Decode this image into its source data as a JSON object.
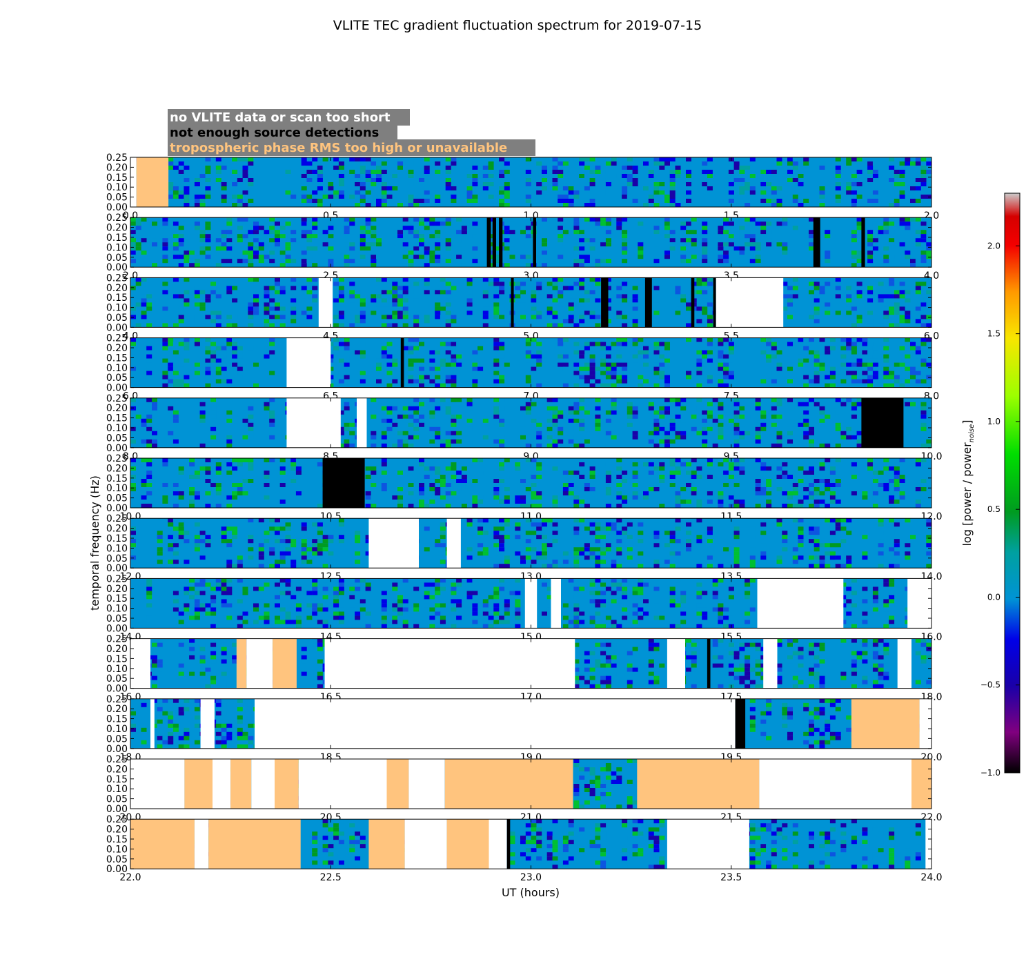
{
  "chart_data": {
    "type": "heatmap",
    "title": "VLITE TEC gradient fluctuation spectrum for 2019-07-15",
    "xlabel": "UT (hours)",
    "ylabel": "temporal frequency (Hz)",
    "colorbar": {
      "label_main": "log [power / power",
      "label_sub": "noise",
      "label_end": "]",
      "range": [
        -1.0,
        2.3
      ],
      "ticks": [
        -1.0,
        -0.5,
        0.0,
        0.5,
        1.0,
        1.5,
        2.0
      ],
      "tick_labels": [
        "−1.0",
        "−0.5",
        "0.0",
        "0.5",
        "1.0",
        "1.5",
        "2.0"
      ]
    },
    "legend": [
      {
        "text": "no VLITE data or scan too short",
        "color": "#ffffff"
      },
      {
        "text": "not enough source detections",
        "color": "#000000"
      },
      {
        "text": "tropospheric phase RMS too high or unavailable",
        "color": "#ffc47e"
      }
    ],
    "ylim": [
      0,
      0.25
    ],
    "yticks": [
      0.0,
      0.05,
      0.1,
      0.15,
      0.2,
      0.25
    ],
    "ytick_labels": [
      "0.00",
      "0.05",
      "0.10",
      "0.15",
      "0.20",
      "0.25"
    ],
    "colors": {
      "background": "#0093d5",
      "no_data": "#ffffff",
      "few_detections": "#000000",
      "troposphere": "#ffc47e"
    },
    "panels": [
      {
        "xlim": [
          0,
          2
        ],
        "xtick_labels": [
          "0.0",
          "0.5",
          "1.0",
          "1.5",
          "2.0"
        ],
        "flags": [
          {
            "start": 0,
            "end": 0.015,
            "type": "no_data"
          },
          {
            "start": 0.015,
            "end": 0.095,
            "type": "troposphere"
          }
        ]
      },
      {
        "xlim": [
          2,
          4
        ],
        "xtick_labels": [
          "2.0",
          "2.5",
          "3.0",
          "3.5",
          "4.0"
        ],
        "flags": [
          {
            "start": 2.89,
            "end": 2.9,
            "type": "few_detections"
          },
          {
            "start": 2.904,
            "end": 2.913,
            "type": "few_detections"
          },
          {
            "start": 2.92,
            "end": 2.929,
            "type": "few_detections"
          },
          {
            "start": 3.005,
            "end": 3.013,
            "type": "few_detections"
          },
          {
            "start": 3.705,
            "end": 3.722,
            "type": "few_detections"
          },
          {
            "start": 3.825,
            "end": 3.834,
            "type": "few_detections"
          }
        ]
      },
      {
        "xlim": [
          4,
          6
        ],
        "xtick_labels": [
          "4.0",
          "4.5",
          "5.0",
          "5.5",
          "6.0"
        ],
        "flags": [
          {
            "start": 4.47,
            "end": 4.505,
            "type": "no_data"
          },
          {
            "start": 4.95,
            "end": 4.957,
            "type": "few_detections"
          },
          {
            "start": 5.175,
            "end": 5.193,
            "type": "few_detections"
          },
          {
            "start": 5.285,
            "end": 5.302,
            "type": "few_detections"
          },
          {
            "start": 5.4,
            "end": 5.408,
            "type": "few_detections"
          },
          {
            "start": 5.455,
            "end": 5.462,
            "type": "few_detections"
          },
          {
            "start": 5.462,
            "end": 5.63,
            "type": "no_data"
          }
        ]
      },
      {
        "xlim": [
          6,
          8
        ],
        "xtick_labels": [
          "6.0",
          "6.5",
          "7.0",
          "7.5",
          "8.0"
        ],
        "flags": [
          {
            "start": 6.39,
            "end": 6.5,
            "type": "no_data"
          },
          {
            "start": 6.675,
            "end": 6.683,
            "type": "few_detections"
          }
        ]
      },
      {
        "xlim": [
          8,
          10
        ],
        "xtick_labels": [
          "8.0",
          "8.5",
          "9.0",
          "9.5",
          "10.0"
        ],
        "flags": [
          {
            "start": 8.39,
            "end": 8.525,
            "type": "no_data"
          },
          {
            "start": 8.565,
            "end": 8.59,
            "type": "no_data"
          },
          {
            "start": 9.825,
            "end": 9.93,
            "type": "few_detections"
          }
        ]
      },
      {
        "xlim": [
          10,
          12
        ],
        "xtick_labels": [
          "10.0",
          "10.5",
          "11.0",
          "11.5",
          "12.0"
        ],
        "flags": [
          {
            "start": 10.48,
            "end": 10.585,
            "type": "few_detections"
          }
        ]
      },
      {
        "xlim": [
          12,
          14
        ],
        "xtick_labels": [
          "12.0",
          "12.5",
          "13.0",
          "13.5",
          "14.0"
        ],
        "flags": [
          {
            "start": 12.595,
            "end": 12.72,
            "type": "no_data"
          },
          {
            "start": 12.79,
            "end": 12.825,
            "type": "no_data"
          }
        ]
      },
      {
        "xlim": [
          14,
          16
        ],
        "xtick_labels": [
          "14.0",
          "14.5",
          "15.0",
          "15.5",
          "16.0"
        ],
        "flags": [
          {
            "start": 14.985,
            "end": 15.015,
            "type": "no_data"
          },
          {
            "start": 15.05,
            "end": 15.075,
            "type": "no_data"
          },
          {
            "start": 15.565,
            "end": 15.78,
            "type": "no_data"
          },
          {
            "start": 15.94,
            "end": 16.0,
            "type": "no_data"
          }
        ]
      },
      {
        "xlim": [
          16,
          18
        ],
        "xtick_labels": [
          "16.0",
          "16.5",
          "17.0",
          "17.5",
          "18.0"
        ],
        "flags": [
          {
            "start": 16.0,
            "end": 16.05,
            "type": "no_data"
          },
          {
            "start": 16.265,
            "end": 16.29,
            "type": "troposphere"
          },
          {
            "start": 16.29,
            "end": 16.355,
            "type": "no_data"
          },
          {
            "start": 16.355,
            "end": 16.415,
            "type": "troposphere"
          },
          {
            "start": 16.485,
            "end": 17.11,
            "type": "no_data"
          },
          {
            "start": 17.34,
            "end": 17.385,
            "type": "no_data"
          },
          {
            "start": 17.44,
            "end": 17.448,
            "type": "few_detections"
          },
          {
            "start": 17.58,
            "end": 17.615,
            "type": "no_data"
          },
          {
            "start": 17.915,
            "end": 17.95,
            "type": "no_data"
          }
        ]
      },
      {
        "xlim": [
          18,
          20
        ],
        "xtick_labels": [
          "18.0",
          "18.5",
          "19.0",
          "19.5",
          "20.0"
        ],
        "flags": [
          {
            "start": 18.05,
            "end": 18.06,
            "type": "no_data"
          },
          {
            "start": 18.175,
            "end": 18.21,
            "type": "no_data"
          },
          {
            "start": 18.31,
            "end": 19.51,
            "type": "no_data"
          },
          {
            "start": 19.51,
            "end": 19.535,
            "type": "few_detections"
          },
          {
            "start": 19.8,
            "end": 19.97,
            "type": "troposphere"
          },
          {
            "start": 19.97,
            "end": 20.0,
            "type": "no_data"
          }
        ]
      },
      {
        "xlim": [
          20,
          22
        ],
        "xtick_labels": [
          "20.0",
          "20.5",
          "21.0",
          "21.5",
          "22.0"
        ],
        "flags": [
          {
            "start": 20.0,
            "end": 20.135,
            "type": "no_data"
          },
          {
            "start": 20.135,
            "end": 20.205,
            "type": "troposphere"
          },
          {
            "start": 20.205,
            "end": 20.25,
            "type": "no_data"
          },
          {
            "start": 20.25,
            "end": 20.302,
            "type": "troposphere"
          },
          {
            "start": 20.302,
            "end": 20.36,
            "type": "no_data"
          },
          {
            "start": 20.36,
            "end": 20.42,
            "type": "troposphere"
          },
          {
            "start": 20.42,
            "end": 20.64,
            "type": "no_data"
          },
          {
            "start": 20.64,
            "end": 20.695,
            "type": "troposphere"
          },
          {
            "start": 20.695,
            "end": 20.785,
            "type": "no_data"
          },
          {
            "start": 20.785,
            "end": 21.105,
            "type": "troposphere"
          },
          {
            "start": 21.265,
            "end": 21.57,
            "type": "troposphere"
          },
          {
            "start": 21.57,
            "end": 21.95,
            "type": "no_data"
          },
          {
            "start": 21.95,
            "end": 22.0,
            "type": "troposphere"
          }
        ]
      },
      {
        "xlim": [
          22,
          24
        ],
        "xtick_labels": [
          "22.0",
          "22.5",
          "23.0",
          "23.5",
          "24.0"
        ],
        "flags": [
          {
            "start": 22.0,
            "end": 22.16,
            "type": "troposphere"
          },
          {
            "start": 22.16,
            "end": 22.195,
            "type": "no_data"
          },
          {
            "start": 22.195,
            "end": 22.425,
            "type": "troposphere"
          },
          {
            "start": 22.595,
            "end": 22.685,
            "type": "troposphere"
          },
          {
            "start": 22.685,
            "end": 22.79,
            "type": "no_data"
          },
          {
            "start": 22.79,
            "end": 22.895,
            "type": "troposphere"
          },
          {
            "start": 22.895,
            "end": 22.94,
            "type": "no_data"
          },
          {
            "start": 22.94,
            "end": 22.948,
            "type": "few_detections"
          },
          {
            "start": 23.34,
            "end": 23.545,
            "type": "no_data"
          },
          {
            "start": 23.985,
            "end": 24.0,
            "type": "no_data"
          }
        ]
      }
    ]
  }
}
